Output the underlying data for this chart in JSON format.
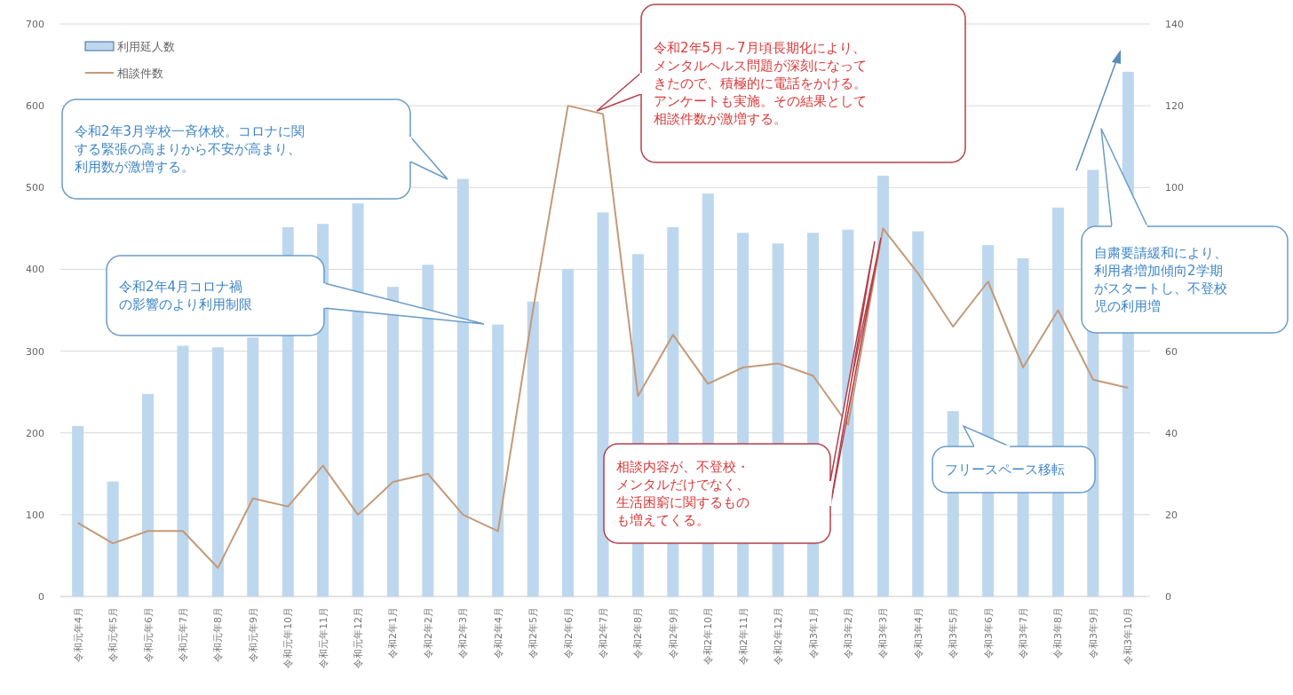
{
  "chart_data": {
    "type": "bar",
    "categories": [
      "令和元年4月",
      "令和元年5月",
      "令和元年6月",
      "令和元年7月",
      "令和元年8月",
      "令和元年9月",
      "令和元年10月",
      "令和元年11月",
      "令和元年12月",
      "令和2年1月",
      "令和2年2月",
      "令和2年3月",
      "令和2年4月",
      "令和2年5月",
      "令和2年6月",
      "令和2年7月",
      "令和2年8月",
      "令和2年9月",
      "令和2年10月",
      "令和2年11月",
      "令和2年12月",
      "令和3年1月",
      "令和3年2月",
      "令和3年3月",
      "令和3年4月",
      "令和3年5月",
      "令和3年6月",
      "令和3年7月",
      "令和3年8月",
      "令和3年9月",
      "令和3年10月"
    ],
    "series": [
      {
        "name": "利用延人数",
        "color": "#bdd7ee",
        "values": [
          208,
          140,
          247,
          306,
          304,
          316,
          451,
          455,
          480,
          378,
          405,
          510,
          332,
          360,
          400,
          469,
          418,
          451,
          492,
          444,
          431,
          444,
          448,
          514,
          446,
          226,
          429,
          413,
          475,
          521,
          641
        ]
      },
      {
        "name": "相談件数",
        "type": "line",
        "axis": "y2",
        "color": "#c49a78",
        "values": [
          18,
          13,
          16,
          16,
          7,
          24,
          22,
          32,
          20,
          28,
          30,
          20,
          16,
          70,
          120,
          118,
          49,
          64,
          52,
          56,
          57,
          54,
          42,
          90,
          79,
          66,
          77,
          56,
          70,
          53,
          51
        ]
      }
    ],
    "ylim": [
      0,
      700
    ],
    "yticks": [
      0,
      100,
      200,
      300,
      400,
      500,
      600,
      700
    ],
    "y2lim": [
      0,
      140
    ],
    "y2ticks": [
      0,
      20,
      40,
      60,
      100,
      120,
      140
    ],
    "grid": "y",
    "legend": "top left",
    "annotations": [
      "令和2年3月学校一斉休校。コロナに関する緊張の高まりから不安が高まり、利用数が激増する。",
      "令和2年4月コロナ禍の影響のより利用制限",
      "令和2年5月～7月頃長期化により、メンタルヘルス問題が深刻になってきたので、積極的に電話をかける。アンケートも実施。その結果として相談件数が激増する。",
      "相談内容が、不登校・メンタルだけでなく、生活困窮に関するものも増えてくる。",
      "フリースペース移転",
      "自粛要請緩和により、利用者増加傾向2学期がスタートし、不登校児の利用増"
    ]
  }
}
